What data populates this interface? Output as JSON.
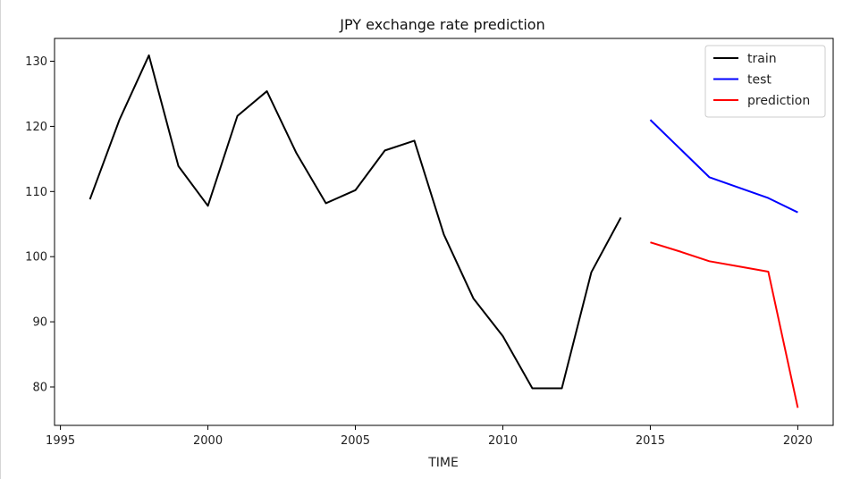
{
  "chart_data": {
    "type": "line",
    "title": "JPY exchange rate prediction",
    "xlabel": "TIME",
    "ylabel": "",
    "xlim": [
      1994.8,
      2021.2
    ],
    "ylim": [
      74.1,
      133.5
    ],
    "xticks": [
      1995,
      2000,
      2005,
      2010,
      2015,
      2020
    ],
    "yticks": [
      80,
      90,
      100,
      110,
      120,
      130
    ],
    "grid": false,
    "legend_position": "top-right",
    "series": [
      {
        "name": "train",
        "color": "#000000",
        "x": [
          1996,
          1997,
          1998,
          1999,
          2000,
          2001,
          2002,
          2003,
          2004,
          2005,
          2006,
          2007,
          2008,
          2009,
          2010,
          2011,
          2012,
          2013,
          2014
        ],
        "y": [
          108.8,
          121.0,
          130.9,
          113.9,
          107.8,
          121.6,
          125.4,
          115.9,
          108.2,
          110.2,
          116.3,
          117.8,
          103.4,
          93.6,
          87.8,
          79.8,
          79.8,
          97.6,
          106.0
        ]
      },
      {
        "name": "test",
        "color": "#0000ff",
        "x": [
          2015,
          2016,
          2017,
          2018,
          2019,
          2020
        ],
        "y": [
          121.0,
          116.6,
          112.2,
          110.6,
          109.0,
          106.8
        ]
      },
      {
        "name": "prediction",
        "color": "#ff0000",
        "x": [
          2015,
          2016,
          2017,
          2018,
          2019,
          2020
        ],
        "y": [
          102.2,
          100.8,
          99.3,
          98.5,
          97.7,
          76.8
        ]
      }
    ]
  }
}
